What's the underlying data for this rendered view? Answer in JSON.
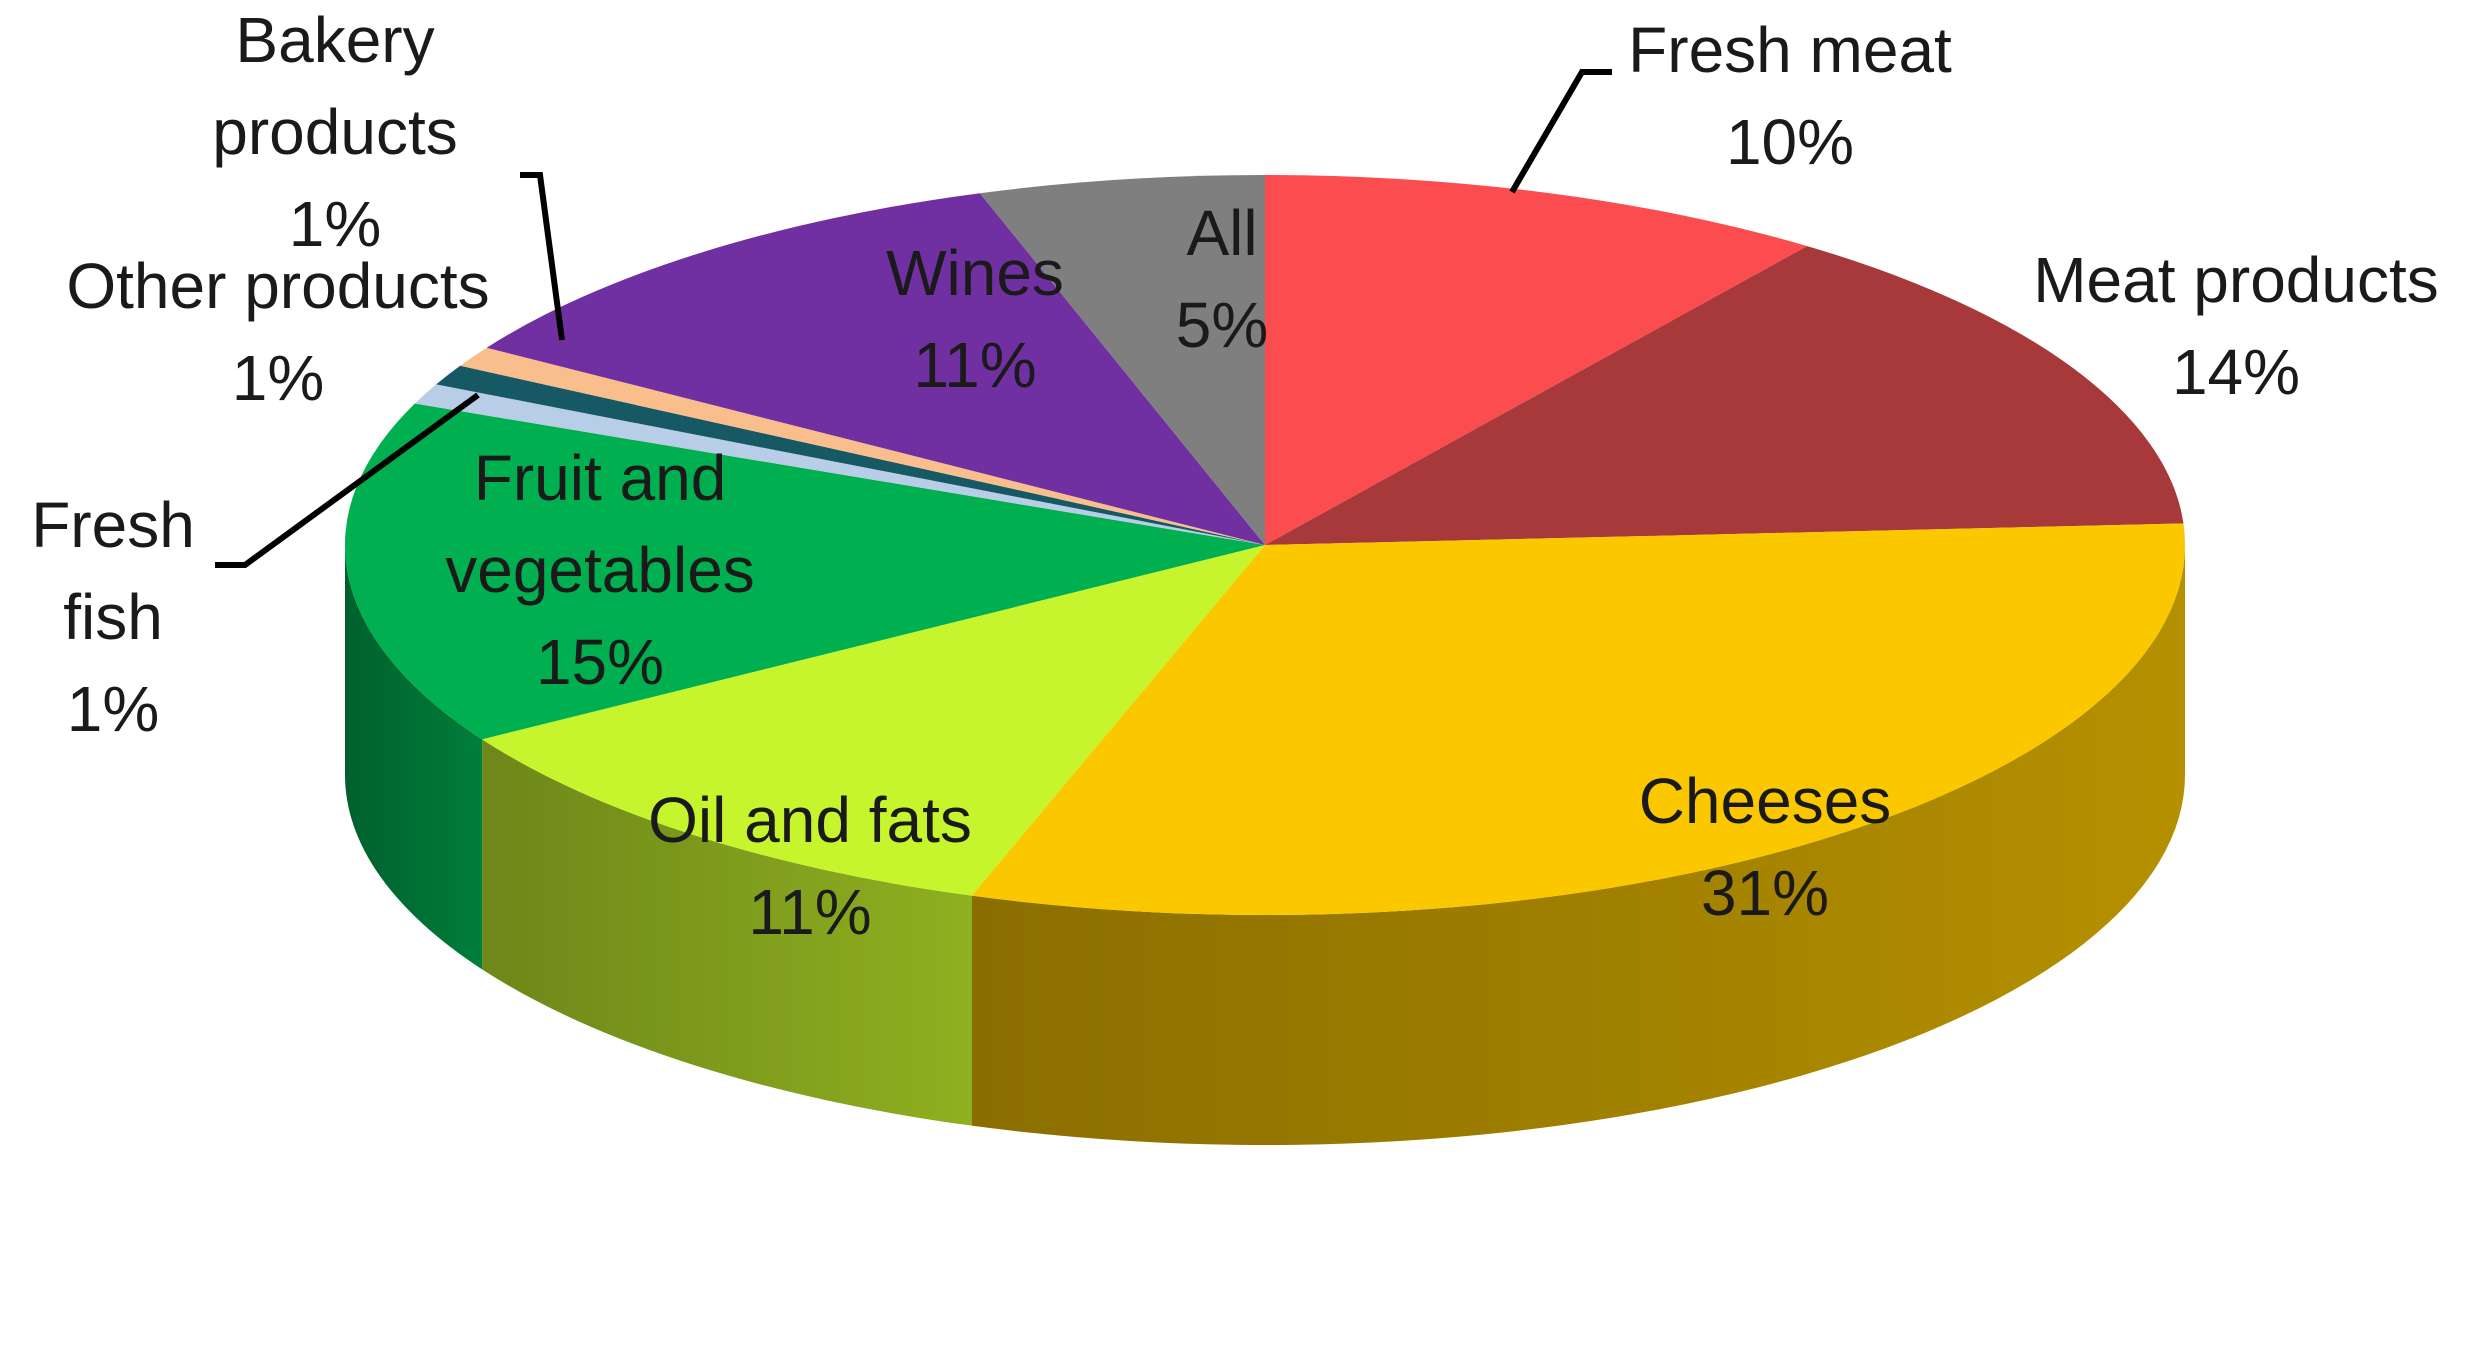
{
  "chart_data": {
    "type": "pie",
    "style": "3d",
    "title": "",
    "start": "12 o'clock, clockwise",
    "slices": [
      {
        "label": "Fresh meat",
        "pct_label": "10%",
        "value": 10,
        "color": "#fb4d4f",
        "label_lines": [
          "Fresh meat"
        ]
      },
      {
        "label": "Meat products",
        "pct_label": "14%",
        "value": 14,
        "color": "#a8393b",
        "label_lines": [
          "Meat products"
        ]
      },
      {
        "label": "Cheeses",
        "pct_label": "31%",
        "value": 31,
        "color": "#fbc800",
        "label_lines": [
          "Cheeses"
        ]
      },
      {
        "label": "Oil and fats",
        "pct_label": "11%",
        "value": 11,
        "color": "#c7f52d",
        "label_lines": [
          "Oil and fats"
        ]
      },
      {
        "label": "Fruit and vegetables",
        "pct_label": "15%",
        "value": 15,
        "color": "#00af50",
        "label_lines": [
          "Fruit and",
          "vegetables"
        ]
      },
      {
        "label": "Fresh fish",
        "pct_label": "1%",
        "value": 0.9,
        "color": "#b8cde6",
        "label_lines": [
          "Fresh",
          "fish"
        ]
      },
      {
        "label": "Other products",
        "pct_label": "1%",
        "value": 0.9,
        "color": "#175865",
        "label_lines": [
          "Other products"
        ]
      },
      {
        "label": "Bakery products",
        "pct_label": "1%",
        "value": 0.9,
        "color": "#f9be8c",
        "label_lines": [
          "Bakery",
          "products"
        ]
      },
      {
        "label": "Wines",
        "pct_label": "11%",
        "value": 11,
        "color": "#7030a1",
        "label_lines": [
          "Wines"
        ]
      },
      {
        "label": "All",
        "pct_label": "5%",
        "value": 5,
        "color": "#7f7f7f",
        "label_lines": [
          "All"
        ]
      }
    ]
  }
}
